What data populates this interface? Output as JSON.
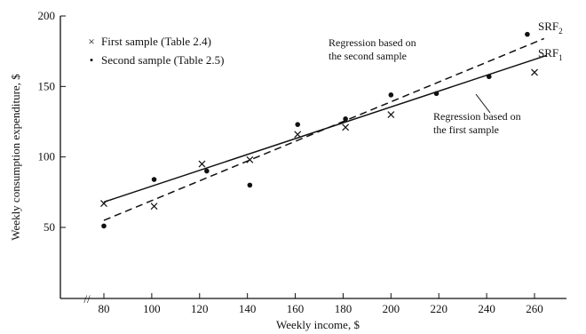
{
  "chart_data": {
    "type": "scatter",
    "xlabel": "Weekly income, $",
    "ylabel": "Weekly consumption expenditure, $",
    "x_ticks": [
      80,
      100,
      120,
      140,
      160,
      180,
      200,
      220,
      240,
      260
    ],
    "y_ticks": [
      50,
      100,
      150,
      200
    ],
    "xlim": [
      70,
      270
    ],
    "ylim": [
      25,
      200
    ],
    "axis_break": "//",
    "grid": false,
    "legend": {
      "placement": "top-left",
      "entries": [
        {
          "marker": "×",
          "label": "First sample (Table 2.4)"
        },
        {
          "marker": "•",
          "label": "Second sample (Table 2.5)"
        }
      ]
    },
    "series": [
      {
        "name": "First sample (Table 2.4)",
        "marker": "cross",
        "points": [
          [
            80,
            67
          ],
          [
            101,
            65
          ],
          [
            121,
            95
          ],
          [
            141,
            98
          ],
          [
            161,
            116
          ],
          [
            181,
            121
          ],
          [
            200,
            130
          ],
          [
            260,
            160
          ]
        ]
      },
      {
        "name": "Second sample (Table 2.5)",
        "marker": "dot",
        "points": [
          [
            80,
            51
          ],
          [
            101,
            84
          ],
          [
            123,
            90
          ],
          [
            141,
            80
          ],
          [
            161,
            123
          ],
          [
            181,
            127
          ],
          [
            200,
            144
          ],
          [
            219,
            145
          ],
          [
            241,
            157
          ],
          [
            257,
            187
          ]
        ]
      }
    ],
    "lines": [
      {
        "label_main": "SRF",
        "label_sub": "1",
        "style": "solid",
        "from": [
          80,
          68
        ],
        "to": [
          265,
          172
        ]
      },
      {
        "label_main": "SRF",
        "label_sub": "2",
        "style": "dashed",
        "from": [
          80,
          55
        ],
        "to": [
          264,
          184
        ]
      }
    ],
    "annotations": [
      {
        "lines": [
          "Regression based on",
          "the second sample"
        ]
      },
      {
        "lines": [
          "Regression based on",
          "the first sample"
        ]
      }
    ]
  }
}
